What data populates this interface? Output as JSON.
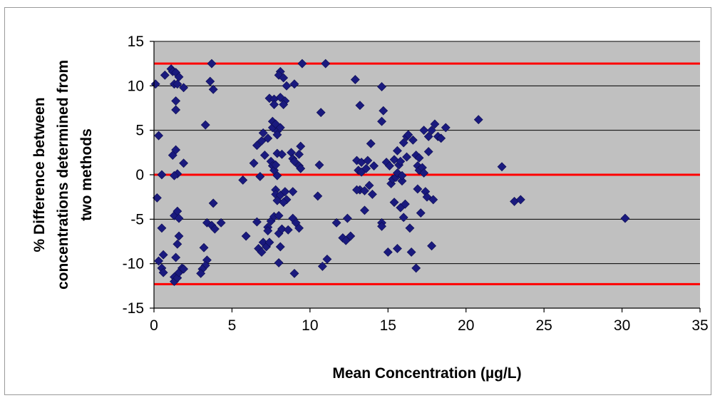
{
  "chart_data": {
    "type": "scatter",
    "title": "",
    "xlabel": "Mean Concentration (µg/L)",
    "ylabel_lines": [
      "% Difference between",
      "concentrations determined from",
      "two methods"
    ],
    "xlim": [
      0,
      35
    ],
    "ylim": [
      -15,
      15
    ],
    "x_ticks": [
      0,
      5,
      10,
      15,
      20,
      25,
      30,
      35
    ],
    "y_ticks": [
      -15,
      -10,
      -5,
      0,
      5,
      10,
      15
    ],
    "grid": "horizontal",
    "legend": "none",
    "reference_lines": [
      12.5,
      0,
      -12.3
    ],
    "colors": {
      "plot_background": "#c0c0c0",
      "marker": "#1a1a7e",
      "reference_line": "#ff0000",
      "gridline": "#000000"
    },
    "series": [
      {
        "marker": "diamond",
        "points": [
          [
            0.1,
            10.2
          ],
          [
            0.3,
            4.4
          ],
          [
            0.5,
            0.0
          ],
          [
            0.2,
            -2.6
          ],
          [
            0.5,
            -6.0
          ],
          [
            0.3,
            -9.7
          ],
          [
            0.5,
            -10.5
          ],
          [
            0.6,
            -9.0
          ],
          [
            0.6,
            -11.0
          ],
          [
            0.7,
            11.2
          ],
          [
            1.1,
            11.9
          ],
          [
            1.2,
            11.6
          ],
          [
            1.3,
            10.2
          ],
          [
            1.4,
            11.5
          ],
          [
            1.6,
            11.0
          ],
          [
            1.5,
            10.2
          ],
          [
            1.9,
            9.8
          ],
          [
            1.4,
            8.3
          ],
          [
            1.4,
            7.3
          ],
          [
            1.2,
            2.2
          ],
          [
            1.4,
            2.8
          ],
          [
            1.5,
            0.1
          ],
          [
            1.3,
            -0.1
          ],
          [
            1.9,
            1.3
          ],
          [
            1.3,
            -4.6
          ],
          [
            1.5,
            -4.1
          ],
          [
            1.6,
            -4.9
          ],
          [
            1.6,
            -6.9
          ],
          [
            1.5,
            -7.8
          ],
          [
            1.4,
            -9.3
          ],
          [
            1.3,
            -11.5
          ],
          [
            1.3,
            -12.0
          ],
          [
            1.5,
            -11.6
          ],
          [
            1.6,
            -11.0
          ],
          [
            1.8,
            -10.5
          ],
          [
            1.9,
            -10.6
          ],
          [
            3.3,
            5.6
          ],
          [
            3.7,
            12.5
          ],
          [
            3.6,
            10.5
          ],
          [
            3.8,
            9.6
          ],
          [
            3.8,
            -3.2
          ],
          [
            3.4,
            -5.4
          ],
          [
            3.7,
            -5.7
          ],
          [
            3.9,
            -6.1
          ],
          [
            4.3,
            -5.4
          ],
          [
            3.2,
            -8.2
          ],
          [
            3.4,
            -9.6
          ],
          [
            3.3,
            -10.2
          ],
          [
            3.1,
            -10.6
          ],
          [
            3.0,
            -11.1
          ],
          [
            5.7,
            -0.6
          ],
          [
            5.9,
            -6.9
          ],
          [
            6.4,
            1.3
          ],
          [
            6.6,
            3.3
          ],
          [
            6.9,
            3.8
          ],
          [
            7.0,
            4.7
          ],
          [
            7.3,
            4.1
          ],
          [
            7.1,
            2.2
          ],
          [
            6.8,
            -0.2
          ],
          [
            6.6,
            -5.3
          ],
          [
            6.7,
            -8.3
          ],
          [
            6.9,
            -8.7
          ],
          [
            7.0,
            -7.6
          ],
          [
            7.2,
            -8.1
          ],
          [
            7.4,
            -7.6
          ],
          [
            7.3,
            -5.9
          ],
          [
            7.5,
            -5.2
          ],
          [
            7.3,
            -6.3
          ],
          [
            7.4,
            8.6
          ],
          [
            7.7,
            8.5
          ],
          [
            7.7,
            7.9
          ],
          [
            7.6,
            6.0
          ],
          [
            7.6,
            5.3
          ],
          [
            7.8,
            5.7
          ],
          [
            7.9,
            4.9
          ],
          [
            8.1,
            5.3
          ],
          [
            7.9,
            4.5
          ],
          [
            7.5,
            1.5
          ],
          [
            7.6,
            1.0
          ],
          [
            7.7,
            0.5
          ],
          [
            7.8,
            1.1
          ],
          [
            7.9,
            2.4
          ],
          [
            7.9,
            -0.1
          ],
          [
            7.8,
            -1.7
          ],
          [
            7.8,
            -2.2
          ],
          [
            7.9,
            -2.9
          ],
          [
            8.1,
            -2.3
          ],
          [
            7.7,
            -4.7
          ],
          [
            8.0,
            -4.6
          ],
          [
            8.0,
            -6.6
          ],
          [
            8.1,
            -8.1
          ],
          [
            8.0,
            -9.9
          ],
          [
            8.1,
            11.6
          ],
          [
            8.0,
            11.2
          ],
          [
            8.3,
            10.9
          ],
          [
            8.1,
            8.7
          ],
          [
            8.4,
            8.3
          ],
          [
            8.3,
            7.9
          ],
          [
            8.5,
            10.0
          ],
          [
            8.2,
            2.3
          ],
          [
            8.4,
            -1.9
          ],
          [
            8.5,
            -2.8
          ],
          [
            8.3,
            -3.1
          ],
          [
            8.2,
            -6.1
          ],
          [
            8.6,
            -6.2
          ],
          [
            9.0,
            10.2
          ],
          [
            8.8,
            2.5
          ],
          [
            8.9,
            1.8
          ],
          [
            9.0,
            1.5
          ],
          [
            9.3,
            2.3
          ],
          [
            9.4,
            3.2
          ],
          [
            9.3,
            1.0
          ],
          [
            9.4,
            0.7
          ],
          [
            8.9,
            -1.9
          ],
          [
            8.9,
            -4.9
          ],
          [
            9.1,
            -5.4
          ],
          [
            9.3,
            -6.0
          ],
          [
            9.0,
            -11.1
          ],
          [
            9.5,
            12.5
          ],
          [
            10.7,
            7.0
          ],
          [
            10.6,
            1.1
          ],
          [
            10.5,
            -2.4
          ],
          [
            10.8,
            -10.3
          ],
          [
            11.0,
            12.5
          ],
          [
            11.1,
            -9.5
          ],
          [
            11.7,
            -5.4
          ],
          [
            12.1,
            -7.1
          ],
          [
            12.3,
            -7.4
          ],
          [
            12.4,
            -4.9
          ],
          [
            12.6,
            -6.9
          ],
          [
            12.9,
            10.7
          ],
          [
            13.2,
            7.8
          ],
          [
            13.0,
            1.6
          ],
          [
            13.1,
            0.5
          ],
          [
            13.3,
            0.3
          ],
          [
            13.2,
            -1.7
          ],
          [
            13.0,
            -1.7
          ],
          [
            13.3,
            1.4
          ],
          [
            13.5,
            -1.8
          ],
          [
            13.7,
            1.6
          ],
          [
            13.5,
            -4.0
          ],
          [
            13.6,
            0.7
          ],
          [
            13.8,
            -1.2
          ],
          [
            13.9,
            3.5
          ],
          [
            14.0,
            -2.2
          ],
          [
            14.1,
            1.0
          ],
          [
            14.6,
            9.9
          ],
          [
            14.7,
            7.2
          ],
          [
            14.6,
            6.0
          ],
          [
            14.6,
            -5.4
          ],
          [
            14.6,
            -5.8
          ],
          [
            15.0,
            -8.7
          ],
          [
            14.9,
            1.4
          ],
          [
            15.1,
            1.0
          ],
          [
            15.2,
            -1.0
          ],
          [
            15.3,
            -0.5
          ],
          [
            15.4,
            1.7
          ],
          [
            15.4,
            -3.1
          ],
          [
            15.5,
            -0.3
          ],
          [
            15.6,
            -8.3
          ],
          [
            15.6,
            2.7
          ],
          [
            15.6,
            0.2
          ],
          [
            15.7,
            1.1
          ],
          [
            15.8,
            1.5
          ],
          [
            15.8,
            -3.7
          ],
          [
            15.9,
            -0.7
          ],
          [
            15.9,
            -0.1
          ],
          [
            16.0,
            3.6
          ],
          [
            16.0,
            -4.8
          ],
          [
            16.1,
            -3.3
          ],
          [
            16.2,
            4.3
          ],
          [
            16.2,
            2.0
          ],
          [
            16.3,
            4.5
          ],
          [
            16.4,
            -6.0
          ],
          [
            16.5,
            -8.7
          ],
          [
            16.6,
            3.9
          ],
          [
            16.8,
            2.2
          ],
          [
            16.8,
            -10.5
          ],
          [
            16.9,
            1.0
          ],
          [
            16.9,
            -1.6
          ],
          [
            17.0,
            1.9
          ],
          [
            17.0,
            0.5
          ],
          [
            17.1,
            -4.3
          ],
          [
            17.2,
            0.8
          ],
          [
            17.3,
            5.0
          ],
          [
            17.3,
            0.2
          ],
          [
            17.4,
            -1.9
          ],
          [
            17.5,
            -2.5
          ],
          [
            17.6,
            4.3
          ],
          [
            17.6,
            2.6
          ],
          [
            17.8,
            5.0
          ],
          [
            17.8,
            -8.0
          ],
          [
            17.9,
            -2.8
          ],
          [
            18.0,
            5.7
          ],
          [
            18.2,
            4.3
          ],
          [
            18.4,
            4.1
          ],
          [
            18.7,
            5.3
          ],
          [
            20.8,
            6.2
          ],
          [
            22.3,
            0.9
          ],
          [
            23.1,
            -3.0
          ],
          [
            23.5,
            -2.8
          ],
          [
            30.2,
            -4.9
          ]
        ]
      }
    ]
  }
}
